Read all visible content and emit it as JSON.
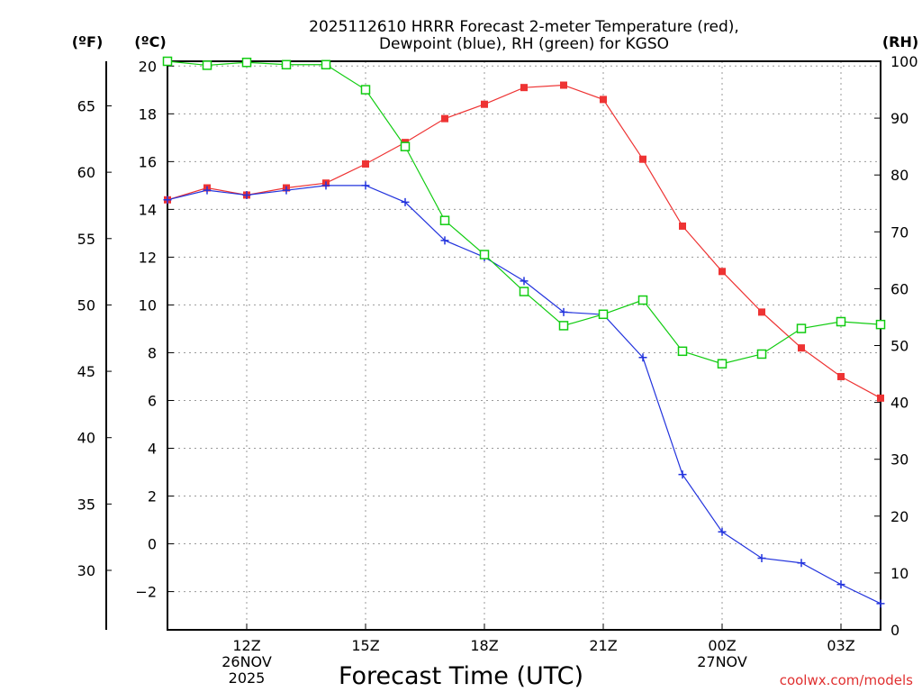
{
  "colors": {
    "temperature": "#ee3333",
    "dewpoint": "#2233dd",
    "rh": "#11cc11",
    "grid": "#9a9a9a",
    "watermark": "#e03030"
  },
  "chart_data": {
    "type": "line",
    "title_line1": "2025112610 HRRR Forecast 2-meter Temperature (red),",
    "title_line2": "Dewpoint (blue), RH (green) for KGSO",
    "xlabel": "Forecast Time (UTC)",
    "units": {
      "fahrenheit": "(ºF)",
      "celsius": "(ºC)",
      "rh": "(RH)"
    },
    "x_hours": [
      10,
      11,
      12,
      13,
      14,
      15,
      16,
      17,
      18,
      19,
      20,
      21,
      22,
      23,
      24,
      25,
      26,
      27,
      28
    ],
    "xlim": [
      10,
      28
    ],
    "x_ticks": [
      {
        "hour": 12,
        "label": "12Z"
      },
      {
        "hour": 15,
        "label": "15Z"
      },
      {
        "hour": 18,
        "label": "18Z"
      },
      {
        "hour": 21,
        "label": "21Z"
      },
      {
        "hour": 24,
        "label": "00Z"
      },
      {
        "hour": 27,
        "label": "03Z"
      }
    ],
    "date_labels": [
      {
        "hour": 12,
        "lines": [
          "26NOV",
          "2025"
        ]
      },
      {
        "hour": 24,
        "lines": [
          "27NOV"
        ]
      }
    ],
    "celsius_axis": {
      "range": [
        -3.6,
        20.2
      ],
      "ticks": [
        20,
        18,
        16,
        14,
        12,
        10,
        8,
        6,
        4,
        2,
        0,
        -2
      ]
    },
    "fahrenheit_axis": {
      "ticks": [
        65,
        60,
        55,
        50,
        45,
        40,
        35,
        30
      ]
    },
    "rh_axis": {
      "range": [
        0,
        100
      ],
      "ticks": [
        100,
        90,
        80,
        70,
        60,
        50,
        40,
        30,
        20,
        10,
        0
      ]
    },
    "series": [
      {
        "name": "Temperature",
        "axis": "celsius",
        "marker": "filled-square",
        "values": [
          14.4,
          14.9,
          14.6,
          14.9,
          15.1,
          15.9,
          16.8,
          17.8,
          18.4,
          19.1,
          19.2,
          18.6,
          16.1,
          13.3,
          11.4,
          9.7,
          8.2,
          7.0,
          6.1
        ]
      },
      {
        "name": "Dewpoint",
        "axis": "celsius",
        "marker": "plus",
        "values": [
          14.4,
          14.8,
          14.6,
          14.8,
          15.0,
          15.0,
          14.3,
          12.7,
          12.0,
          11.0,
          9.7,
          9.6,
          7.8,
          2.9,
          0.5,
          -0.6,
          -0.8,
          -1.7,
          -2.5
        ]
      },
      {
        "name": "RH",
        "axis": "rh",
        "marker": "open-square",
        "values": [
          100,
          99.3,
          99.8,
          99.4,
          99.4,
          95,
          85,
          72,
          66,
          59.5,
          53.5,
          55.5,
          58,
          49,
          46.8,
          48.5,
          53,
          54.2,
          53.7
        ]
      }
    ]
  },
  "watermark": "coolwx.com/models"
}
